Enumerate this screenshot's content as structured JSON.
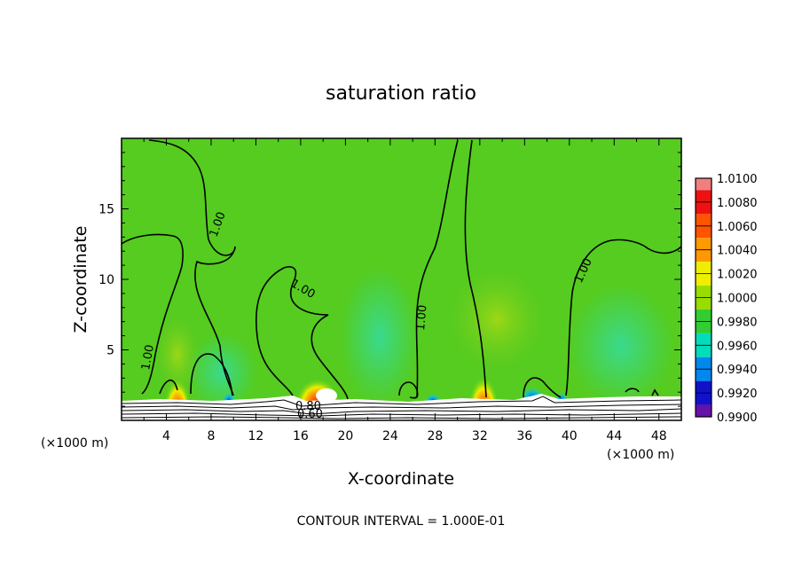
{
  "chart_data": {
    "type": "heatmap",
    "title": "saturation ratio",
    "xlabel": "X-coordinate",
    "ylabel": "Z-coordinate",
    "x_unit_left": "(×1000 m)",
    "x_unit_right": "(×1000 m)",
    "footer": "CONTOUR INTERVAL = 1.000E-01",
    "xlim": [
      0,
      50
    ],
    "ylim": [
      0,
      20
    ],
    "x_ticks": [
      4,
      8,
      12,
      16,
      20,
      24,
      28,
      32,
      36,
      40,
      44,
      48
    ],
    "y_ticks": [
      5,
      10,
      15
    ],
    "colorbar": {
      "levels": [
        "1.0100",
        "1.0080",
        "1.0060",
        "1.0040",
        "1.0020",
        "1.0000",
        "0.9980",
        "0.9960",
        "0.9940",
        "0.9920",
        "0.9900"
      ],
      "colors": [
        "#f08080",
        "#ee1111",
        "#ff5500",
        "#ff9900",
        "#eeee00",
        "#99dd00",
        "#33cc33",
        "#00ddbb",
        "#0088ee",
        "#1111cc",
        "#6611aa"
      ]
    },
    "contour_labels": [
      "1.00",
      "1.00",
      "1.00",
      "1.00",
      "1.00",
      "0.80",
      "0.60"
    ],
    "hotspots": [
      {
        "x": 5,
        "z": 1.9,
        "value": 1.0065
      },
      {
        "x": 17.5,
        "z": 2.0,
        "value": 1.009
      },
      {
        "x": 32,
        "z": 2.0,
        "value": 1.0065
      },
      {
        "x": 36.5,
        "z": 2.0,
        "value": 0.994
      }
    ]
  }
}
